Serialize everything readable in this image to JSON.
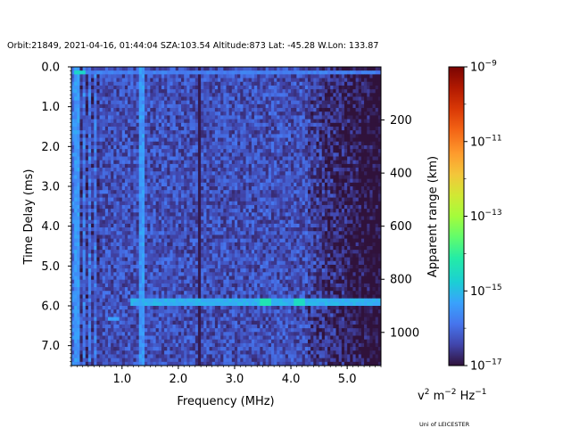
{
  "chart_data": {
    "type": "heatmap",
    "title": "Orbit:21849, 2021-04-16, 01:44:04 SZA:103.54 Altitude:873 Lat: -45.28 W.Lon: 133.87",
    "xlabel": "Frequency (MHz)",
    "ylabel": "Time Delay (ms)",
    "y2label": "Apparent range (km)",
    "colorbar_label": "v2 m-2 Hz-1",
    "colorbar_label_parts": {
      "base": "v",
      "sup1": "2",
      "mid": " m",
      "sup2": "−2",
      "tail": " Hz",
      "sup3": "−1"
    },
    "footer": "Uni of LEICESTER",
    "colormap": "turbo",
    "log_scale_color": true,
    "xlim": [
      0.1,
      5.6
    ],
    "ylim": [
      7.5,
      0.0
    ],
    "y2lim": [
      1125,
      0
    ],
    "color_range": [
      -17,
      -9
    ],
    "xticks": [
      1.0,
      2.0,
      3.0,
      4.0,
      5.0
    ],
    "xtick_labels": [
      "1.0",
      "2.0",
      "3.0",
      "4.0",
      "5.0"
    ],
    "yticks": [
      0.0,
      1.0,
      2.0,
      3.0,
      4.0,
      5.0,
      6.0,
      7.0
    ],
    "ytick_labels": [
      "0.0",
      "1.0",
      "2.0",
      "3.0",
      "4.0",
      "5.0",
      "6.0",
      "7.0"
    ],
    "y2ticks": [
      200,
      400,
      600,
      800,
      1000
    ],
    "y2tick_labels": [
      "200",
      "400",
      "600",
      "800",
      "1000"
    ],
    "colorbar_ticks": [
      {
        "exp": -9,
        "base": "10",
        "sup": "−9"
      },
      {
        "exp": -11,
        "base": "10",
        "sup": "−11"
      },
      {
        "exp": -13,
        "base": "10",
        "sup": "−13"
      },
      {
        "exp": -15,
        "base": "10",
        "sup": "−15"
      },
      {
        "exp": -17,
        "base": "10",
        "sup": "−17"
      }
    ],
    "grid": {
      "freq_bins": 110,
      "delay_bins": 80
    },
    "features": {
      "background_log_level": -16.3,
      "high_freq_falloff_mhz": 4.3,
      "low_freq_bright_band_mhz": 0.6,
      "bright_rows": [
        {
          "delay_ms": 0.15,
          "log_level": -15.6,
          "freq_range": [
            0.1,
            5.6
          ]
        },
        {
          "delay_ms": 5.9,
          "log_level": -15.0,
          "freq_range": [
            1.15,
            5.6
          ]
        },
        {
          "delay_ms": 6.3,
          "log_level": -15.3,
          "freq_range": [
            0.75,
            0.95
          ]
        }
      ],
      "bright_columns": [
        {
          "freq_mhz": 1.35,
          "log_level": -15.2
        },
        {
          "freq_mhz": 0.2,
          "log_level": -15.2
        }
      ],
      "dark_columns": [
        {
          "freq_mhz": 2.38,
          "log_level": -16.9
        }
      ],
      "hot_spots": [
        {
          "freq_mhz": 3.55,
          "delay_ms": 5.9,
          "log_level": -14.3
        },
        {
          "freq_mhz": 4.15,
          "delay_ms": 5.9,
          "log_level": -14.5
        },
        {
          "freq_mhz": 0.25,
          "delay_ms": 0.15,
          "log_level": -14.6
        }
      ]
    }
  }
}
